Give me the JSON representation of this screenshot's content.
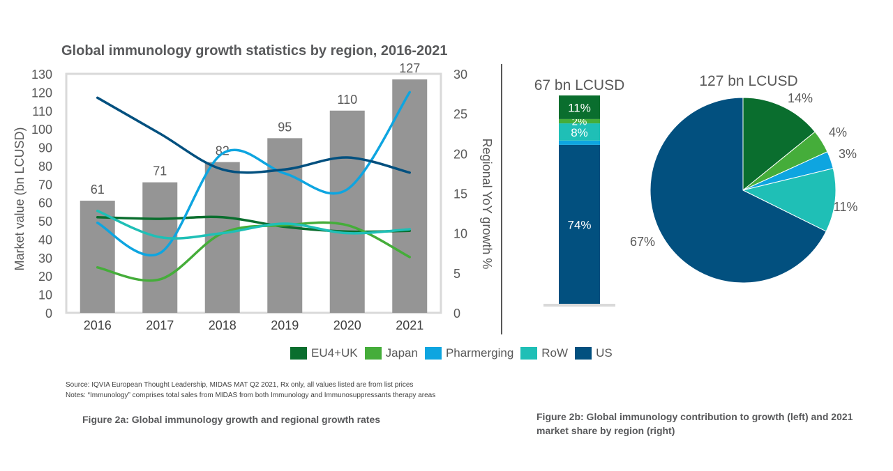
{
  "title": "Global immunology growth statistics by region, 2016-2021",
  "colors": {
    "bar": "#959595",
    "EU4+UK": "#0a6e2e",
    "Japan": "#45ad3a",
    "Pharmerging": "#0ea5e0",
    "RoW": "#1fbfb6",
    "US": "#02507f"
  },
  "legend": [
    {
      "name": "EU4+UK",
      "color": "#0a6e2e"
    },
    {
      "name": "Japan",
      "color": "#45ad3a"
    },
    {
      "name": "Pharmerging",
      "color": "#0ea5e0"
    },
    {
      "name": "RoW",
      "color": "#1fbfb6"
    },
    {
      "name": "US",
      "color": "#02507f"
    }
  ],
  "notes": {
    "source": "Source: IQVIA European Thought Leadership, MIDAS MAT Q2 2021, Rx only, all values listed are from list prices",
    "notes": "Notes: “Immunology” comprises total sales from MIDAS from both Immunology and Immunosuppressants therapy areas"
  },
  "captions": {
    "fig2a": "Figure 2a: Global immunology growth and regional growth rates",
    "fig2b": "Figure 2b: Global immunology contribution to growth (left) and 2021 market share by region (right)"
  },
  "chart_data": [
    {
      "type": "bar",
      "title": "Global immunology growth statistics by region, 2016-2021",
      "categories": [
        "2016",
        "2017",
        "2018",
        "2019",
        "2020",
        "2021"
      ],
      "values": [
        61,
        71,
        82,
        95,
        110,
        127
      ],
      "data_labels": [
        "61",
        "71",
        "82",
        "95",
        "110",
        "127"
      ],
      "ylabel": "Market value (bn LCUSD)",
      "ylim": [
        0,
        130
      ],
      "yticks": [
        "0",
        "10",
        "20",
        "30",
        "40",
        "50",
        "60",
        "70",
        "80",
        "90",
        "100",
        "110",
        "120",
        "130"
      ],
      "y2label": "Regional YoY growth %",
      "y2lim": [
        0,
        30
      ],
      "y2ticks": [
        "0",
        "5",
        "10",
        "15",
        "20",
        "25",
        "30"
      ],
      "series": [
        {
          "name": "EU4+UK",
          "axis": "right",
          "values": [
            12,
            11.8,
            12,
            10.8,
            10.2,
            10.3
          ]
        },
        {
          "name": "Japan",
          "axis": "right",
          "values": [
            5.7,
            4.2,
            10,
            11,
            11,
            7
          ]
        },
        {
          "name": "Pharmerging",
          "axis": "right",
          "values": [
            11.3,
            7.5,
            20,
            17.5,
            15.5,
            27.7
          ]
        },
        {
          "name": "RoW",
          "axis": "right",
          "values": [
            12.8,
            9.5,
            10,
            11.2,
            10,
            10.5
          ]
        },
        {
          "name": "US",
          "axis": "right",
          "values": [
            27,
            22.5,
            18,
            18,
            19.5,
            17.6
          ]
        }
      ],
      "grid": false,
      "legend_position": "bottom"
    },
    {
      "type": "bar",
      "title": "67 bn LCUSD",
      "stacked": true,
      "segments": [
        {
          "name": "US",
          "value": 74,
          "label": "74%"
        },
        {
          "name": "Pharmerging",
          "value": 2,
          "label": ""
        },
        {
          "name": "RoW",
          "value": 8,
          "label": "8%"
        },
        {
          "name": "Japan",
          "value": 2,
          "label": "2%"
        },
        {
          "name": "EU4+UK",
          "value": 11,
          "label": "11%"
        }
      ]
    },
    {
      "type": "pie",
      "title": "127 bn LCUSD",
      "slices": [
        {
          "name": "EU4+UK",
          "value": 14,
          "label": "14%"
        },
        {
          "name": "Japan",
          "value": 4,
          "label": "4%"
        },
        {
          "name": "Pharmerging",
          "value": 3,
          "label": "3%"
        },
        {
          "name": "RoW",
          "value": 11,
          "label": "11%"
        },
        {
          "name": "US",
          "value": 67,
          "label": "67%"
        }
      ]
    }
  ]
}
